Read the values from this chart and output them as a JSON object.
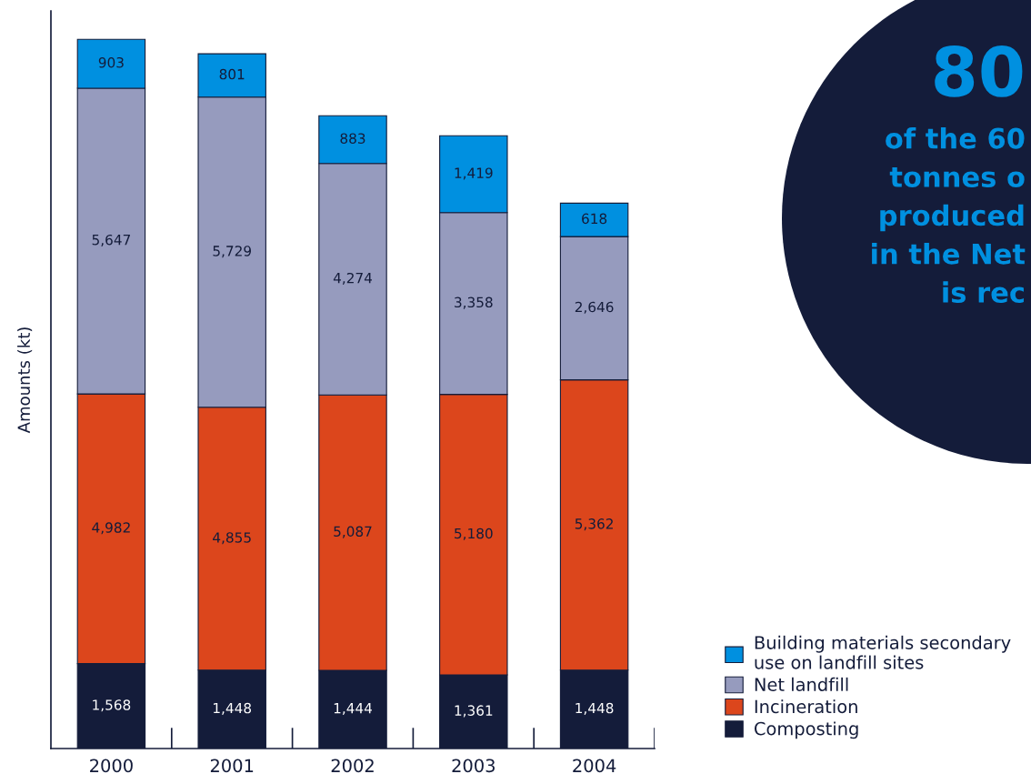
{
  "chart_data": {
    "type": "bar",
    "stacked": true,
    "ylabel": "Amounts (kt)",
    "categories": [
      "2000",
      "2001",
      "2002",
      "2003",
      "2004"
    ],
    "series": [
      {
        "name": "Composting",
        "color": "#141c3a",
        "values": [
          1568,
          1448,
          1444,
          1361,
          1448
        ],
        "value_labels": [
          "1,568",
          "1,448",
          "1,444",
          "1,361",
          "1,448"
        ]
      },
      {
        "name": "Incineration",
        "color": "#dc461c",
        "values": [
          4982,
          4855,
          5087,
          5180,
          5362
        ],
        "value_labels": [
          "4,982",
          "4,855",
          "5,087",
          "5,180",
          "5,362"
        ]
      },
      {
        "name": "Net landfill",
        "color": "#969bbe",
        "values": [
          5647,
          5729,
          4274,
          3358,
          2646
        ],
        "value_labels": [
          "5,647",
          "5,729",
          "4,274",
          "3,358",
          "2,646"
        ]
      },
      {
        "name": "Building materials secondary\nuse on landfill sites",
        "color": "#0090e0",
        "values": [
          903,
          801,
          883,
          1419,
          618
        ],
        "value_labels": [
          "903",
          "801",
          "883",
          "1,419",
          "618"
        ]
      }
    ],
    "legend": "bottom right",
    "annotations": [
      "80",
      "of the 60\ntonnes o\nproduced\nin the Net\nis rec"
    ]
  }
}
